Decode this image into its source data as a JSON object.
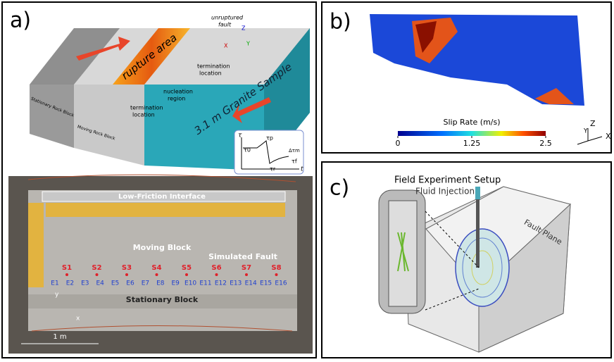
{
  "panel_a": {
    "label": "a)",
    "schematic": {
      "unruptured": [
        "unruptured",
        "fault"
      ],
      "termination_top": [
        "termination",
        "location"
      ],
      "rupture": "rupture area",
      "nucleation": [
        "nucleation",
        "region"
      ],
      "termination_bottom": [
        "termination",
        "location"
      ],
      "sample": "3.1 m Granite Sample",
      "stationary": "Stationary Rock Block",
      "moving": "Moving Rock Block",
      "axes": [
        "Z",
        "X",
        "Y"
      ],
      "inset": {
        "y": "τ",
        "t": "t",
        "tau0": "τ0",
        "taup": "τp",
        "dtau": "Δτm",
        "tauf": "τf",
        "taur": "τr"
      }
    },
    "photo": {
      "interface": "Low-Friction Interface",
      "moving": "Moving Block",
      "fault": "Simulated Fault",
      "stationary": "Stationary Block",
      "sensors_s": [
        "S1",
        "S2",
        "S3",
        "S4",
        "S5",
        "S6",
        "S7",
        "S8"
      ],
      "sensors_e": [
        "E1",
        "E2",
        "E3",
        "E4",
        "E5",
        "E6",
        "E7",
        "E8",
        "E9",
        "E10",
        "E11",
        "E12",
        "E13",
        "E14",
        "E15",
        "E16"
      ],
      "axes": [
        "y",
        "x"
      ],
      "scale": "1 m"
    }
  },
  "panel_b": {
    "label": "b)",
    "colorbar": {
      "title": "Slip Rate (m/s)",
      "lim": [
        0,
        2.5
      ],
      "ticks": [
        0,
        1.25,
        2.5
      ]
    },
    "axes": [
      "Z",
      "Y",
      "X"
    ]
  },
  "panel_c": {
    "label": "c)",
    "title": "Field Experiment Setup",
    "injection": "Fluid Injection",
    "fault": "Fault Plane"
  }
}
